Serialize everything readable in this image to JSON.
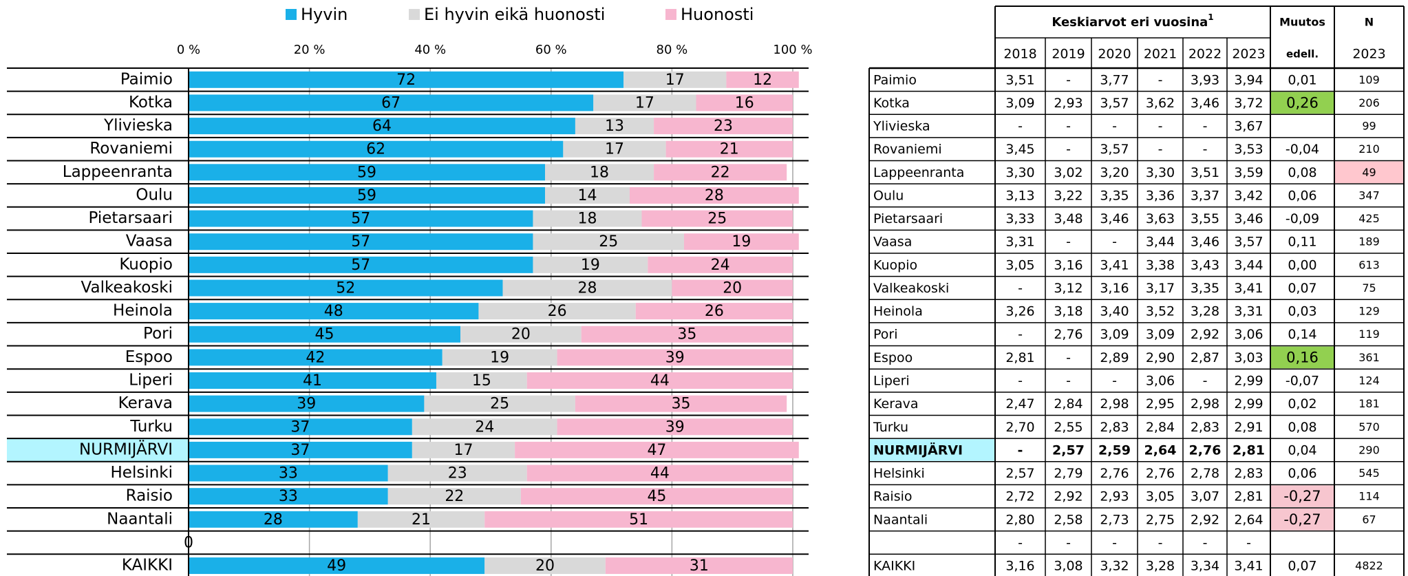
{
  "chart_data": {
    "type": "stacked_bar_horizontal",
    "categories": [
      "Paimio",
      "Kotka",
      "Ylivieska",
      "Rovaniemi",
      "Lappeenranta",
      "Oulu",
      "Pietarsaari",
      "Vaasa",
      "Kuopio",
      "Valkeakoski",
      "Heinola",
      "Pori",
      "Espoo",
      "Liperi",
      "Kerava",
      "Turku",
      "NURMIJÄRVI",
      "Helsinki",
      "Raisio",
      "Naantali",
      null,
      "KAIKKI"
    ],
    "series": [
      {
        "name": "Hyvin",
        "color": "#1ab0e8",
        "values": [
          72,
          67,
          64,
          62,
          59,
          59,
          57,
          57,
          57,
          52,
          48,
          45,
          42,
          41,
          39,
          37,
          37,
          33,
          33,
          28,
          0,
          49
        ]
      },
      {
        "name": "Ei hyvin eikä huonosti",
        "color": "#d9d9d9",
        "values": [
          17,
          17,
          13,
          17,
          18,
          14,
          18,
          25,
          19,
          28,
          26,
          20,
          19,
          15,
          25,
          24,
          17,
          23,
          22,
          21,
          null,
          20
        ]
      },
      {
        "name": "Huonosti",
        "color": "#f7b6cf",
        "values": [
          12,
          16,
          23,
          21,
          22,
          28,
          25,
          19,
          24,
          20,
          26,
          35,
          39,
          44,
          35,
          39,
          47,
          44,
          45,
          51,
          null,
          31
        ]
      }
    ],
    "xlim": [
      0,
      100
    ],
    "xticks": [
      {
        "value": 0,
        "label": "0 %"
      },
      {
        "value": 20,
        "label": "20 %"
      },
      {
        "value": 40,
        "label": "40 %"
      },
      {
        "value": 60,
        "label": "60 %"
      },
      {
        "value": 80,
        "label": "80 %"
      },
      {
        "value": 100,
        "label": "100 %"
      }
    ],
    "grid": true,
    "legend": "top"
  },
  "table": {
    "header": {
      "group": "Keskiarvot eri vuosina",
      "footnote": "1",
      "change": "Muutos",
      "change_sub": "edell.",
      "n": "N",
      "n_sub": "2023",
      "years": [
        "2018",
        "2019",
        "2020",
        "2021",
        "2022",
        "2023"
      ]
    },
    "rows": [
      [
        "Paimio",
        "3,51",
        "-",
        "3,77",
        "-",
        "3,93",
        "3,94",
        "0,01",
        "109"
      ],
      [
        "Kotka",
        "3,09",
        "2,93",
        "3,57",
        "3,62",
        "3,46",
        "3,72",
        "0,26",
        "206"
      ],
      [
        "Ylivieska",
        "-",
        "-",
        "-",
        "-",
        "-",
        "3,67",
        null,
        "99"
      ],
      [
        "Rovaniemi",
        "3,45",
        "-",
        "3,57",
        "-",
        "-",
        "3,53",
        "-0,04",
        "210"
      ],
      [
        "Lappeenranta",
        "3,30",
        "3,02",
        "3,20",
        "3,30",
        "3,51",
        "3,59",
        "0,08",
        "49"
      ],
      [
        "Oulu",
        "3,13",
        "3,22",
        "3,35",
        "3,36",
        "3,37",
        "3,42",
        "0,06",
        "347"
      ],
      [
        "Pietarsaari",
        "3,33",
        "3,48",
        "3,46",
        "3,63",
        "3,55",
        "3,46",
        "-0,09",
        "425"
      ],
      [
        "Vaasa",
        "3,31",
        "-",
        "-",
        "3,44",
        "3,46",
        "3,57",
        "0,11",
        "189"
      ],
      [
        "Kuopio",
        "3,05",
        "3,16",
        "3,41",
        "3,38",
        "3,43",
        "3,44",
        "0,00",
        "613"
      ],
      [
        "Valkeakoski",
        "-",
        "3,12",
        "3,16",
        "3,17",
        "3,35",
        "3,41",
        "0,07",
        "75"
      ],
      [
        "Heinola",
        "3,26",
        "3,18",
        "3,40",
        "3,52",
        "3,28",
        "3,31",
        "0,03",
        "129"
      ],
      [
        "Pori",
        "-",
        "2,76",
        "3,09",
        "3,09",
        "2,92",
        "3,06",
        "0,14",
        "119"
      ],
      [
        "Espoo",
        "2,81",
        "-",
        "2,89",
        "2,90",
        "2,87",
        "3,03",
        "0,16",
        "361"
      ],
      [
        "Liperi",
        "-",
        "-",
        "-",
        "3,06",
        "-",
        "2,99",
        "-0,07",
        "124"
      ],
      [
        "Kerava",
        "2,47",
        "2,84",
        "2,98",
        "2,95",
        "2,98",
        "2,99",
        "0,02",
        "181"
      ],
      [
        "Turku",
        "2,70",
        "2,55",
        "2,83",
        "2,84",
        "2,83",
        "2,91",
        "0,08",
        "570"
      ],
      [
        "NURMIJÄRVI",
        "-",
        "2,57",
        "2,59",
        "2,64",
        "2,76",
        "2,81",
        "0,04",
        "290"
      ],
      [
        "Helsinki",
        "2,57",
        "2,79",
        "2,76",
        "2,76",
        "2,78",
        "2,83",
        "0,06",
        "545"
      ],
      [
        "Raisio",
        "2,72",
        "2,92",
        "2,93",
        "3,05",
        "3,07",
        "2,81",
        "-0,27",
        "114"
      ],
      [
        "Naantali",
        "2,80",
        "2,58",
        "2,73",
        "2,75",
        "2,92",
        "2,64",
        "-0,27",
        "67"
      ],
      [
        null,
        "-",
        "-",
        "-",
        "-",
        "-",
        "-",
        null,
        null
      ],
      [
        "KAIKKI",
        "3,16",
        "3,08",
        "3,32",
        "3,28",
        "3,34",
        "3,41",
        "0,07",
        "4822"
      ]
    ]
  }
}
